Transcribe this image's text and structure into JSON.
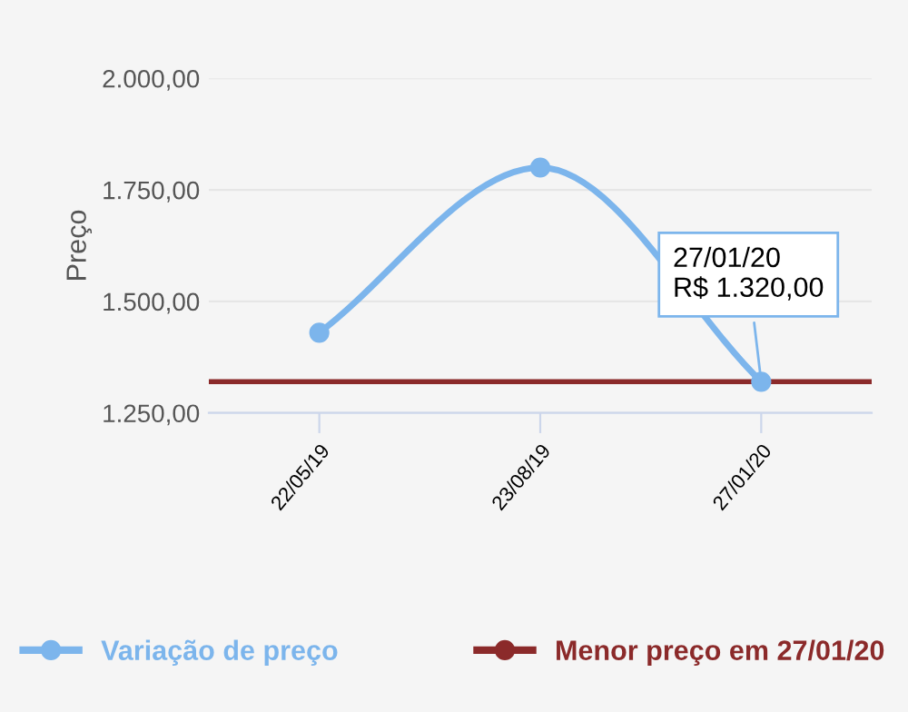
{
  "chart_data": {
    "type": "line",
    "ylabel": "Preço",
    "categories": [
      "22/05/19",
      "23/08/19",
      "27/01/20"
    ],
    "series": [
      {
        "name": "Variação de preço",
        "color": "#7cb5ec",
        "values": [
          1430,
          1800,
          1320
        ]
      }
    ],
    "ylim": [
      1250,
      2000
    ],
    "yticks": [
      {
        "value": 1250,
        "label": "1.250,00"
      },
      {
        "value": 1500,
        "label": "1.500,00"
      },
      {
        "value": 1750,
        "label": "1.750,00"
      },
      {
        "value": 2000,
        "label": "2.000,00"
      }
    ],
    "ref_lines": [
      {
        "axis": "y",
        "value": 1320,
        "label": "Menor preço em 27/01/20",
        "color": "#8b2a2a"
      }
    ],
    "annotations": [
      {
        "text": "27/01/20\nR$ 1.320,00",
        "x": "27/01/20",
        "y": 1320
      }
    ],
    "grid": "y",
    "legend": "bottom",
    "marker": "circle"
  }
}
